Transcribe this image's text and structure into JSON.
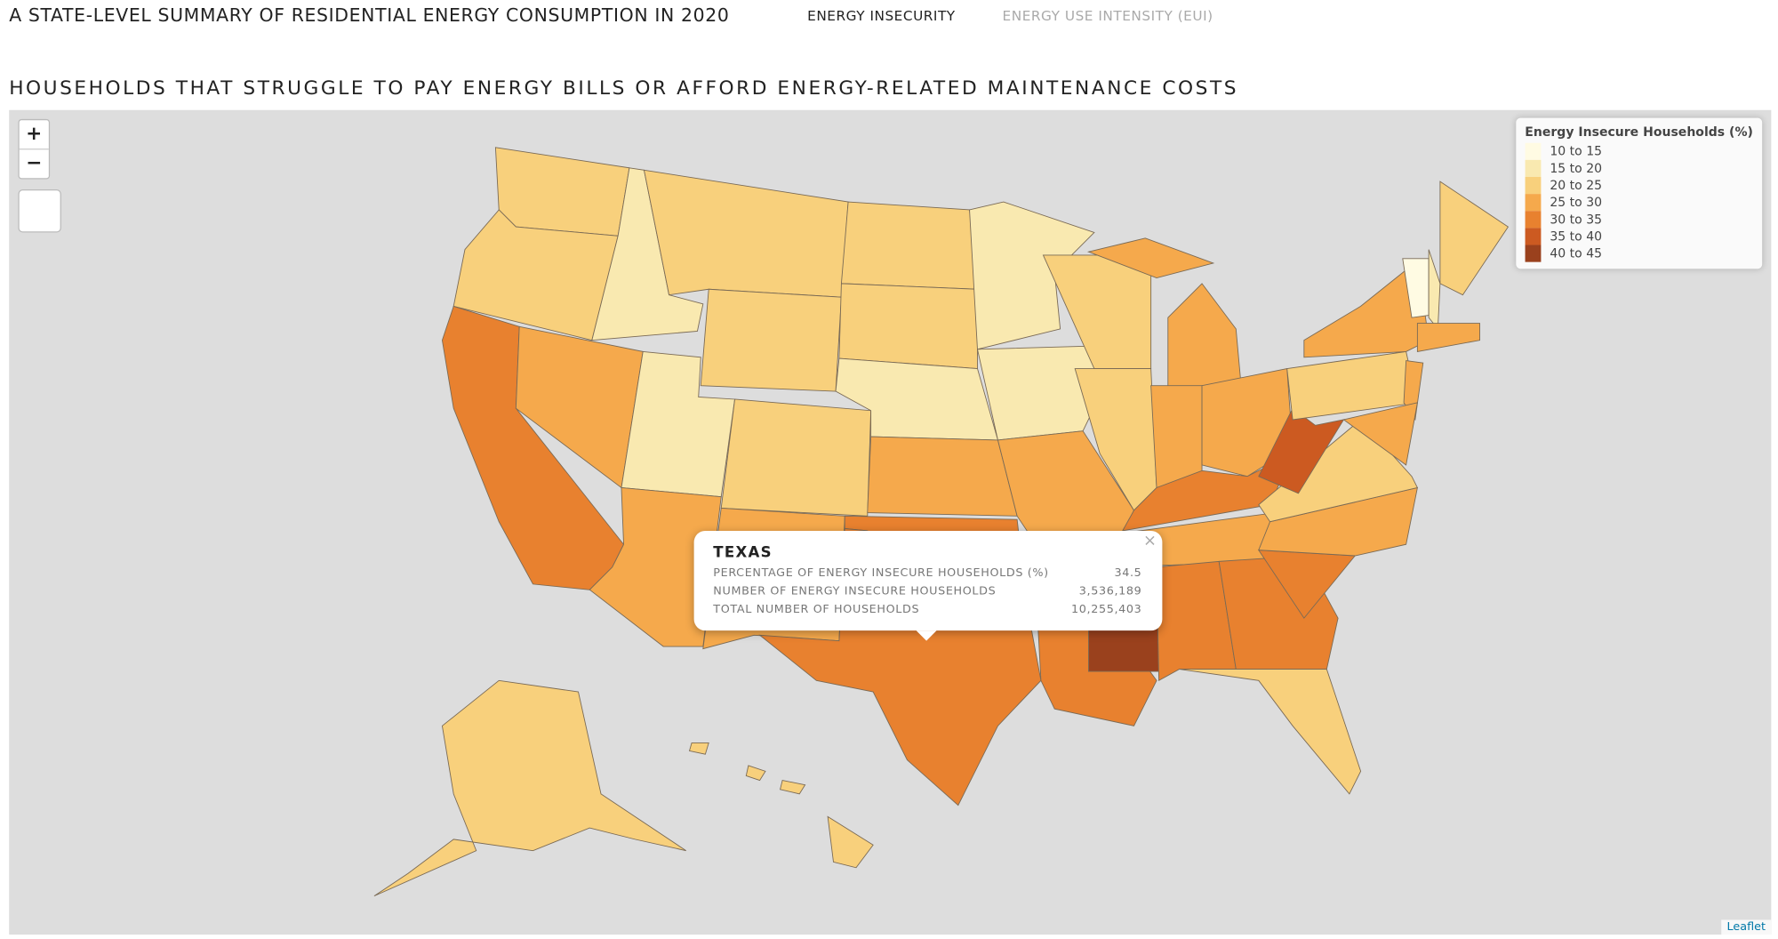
{
  "header": {
    "title": "A STATE-LEVEL SUMMARY OF RESIDENTIAL ENERGY CONSUMPTION IN 2020",
    "tabs": [
      "ENERGY INSECURITY",
      "ENERGY USE INTENSITY (EUI)"
    ]
  },
  "subtitle": "HOUSEHOLDS THAT STRUGGLE TO PAY ENERGY BILLS OR AFFORD ENERGY-RELATED MAINTENANCE COSTS",
  "map": {
    "zoom_controls": [
      "+",
      "−"
    ],
    "attribution": "Leaflet",
    "legend": {
      "title": "Energy Insecure Households (%)",
      "items": [
        {
          "label": "10 to 15",
          "color": "#fffbe3"
        },
        {
          "label": "15 to 20",
          "color": "#f9e9b0"
        },
        {
          "label": "20 to 25",
          "color": "#f8d07c"
        },
        {
          "label": "25 to 30",
          "color": "#f5a94c"
        },
        {
          "label": "30 to 35",
          "color": "#e8812f"
        },
        {
          "label": "35 to 40",
          "color": "#cc5a21"
        },
        {
          "label": "40 to 45",
          "color": "#9a411d"
        }
      ]
    },
    "popup": {
      "title": "TEXAS",
      "rows": [
        {
          "label": "PERCENTAGE OF ENERGY INSECURE HOUSEHOLDS (%)",
          "value": "34.5"
        },
        {
          "label": "NUMBER OF ENERGY INSECURE HOUSEHOLDS",
          "value": "3,536,189"
        },
        {
          "label": "TOTAL NUMBER OF HOUSEHOLDS",
          "value": "10,255,403"
        }
      ]
    }
  }
}
